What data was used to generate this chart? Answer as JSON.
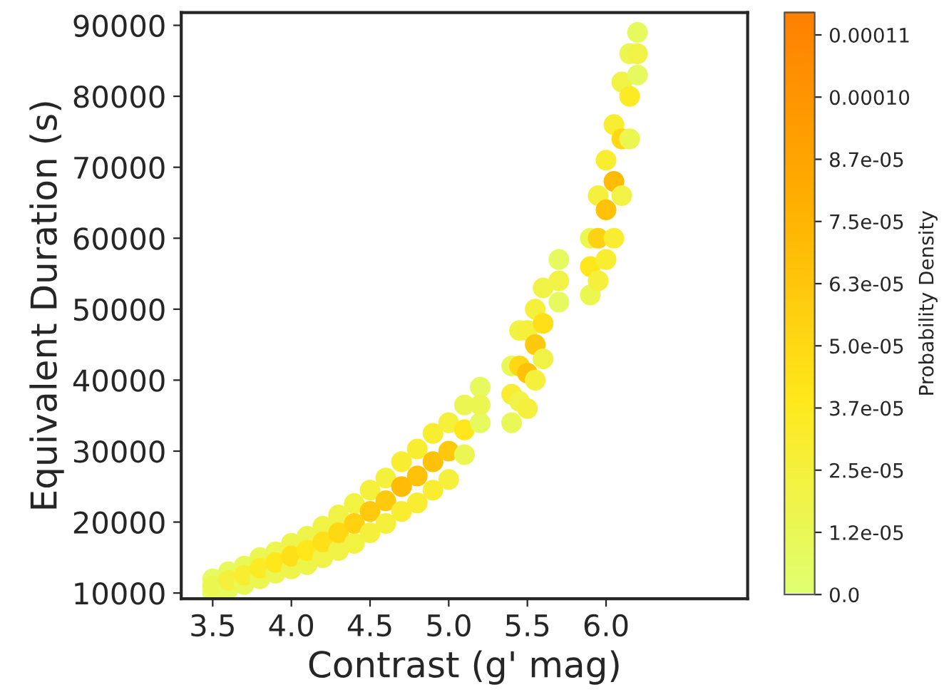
{
  "chart_data": {
    "type": "scatter",
    "xlabel": "Contrast (g' mag)",
    "ylabel": "Equivalent Duration (s)",
    "clabel": "Probability Density",
    "xlim": [
      3.3,
      6.9
    ],
    "xticks": [
      3.5,
      {
        "value": 4,
        "label": "4.0"
      },
      4.5,
      {
        "value": 5,
        "label": "5.0"
      },
      5.5,
      {
        "value": 6,
        "label": "6.0"
      }
    ],
    "ylim": [
      9200,
      91800
    ],
    "yticks": [
      10000,
      20000,
      30000,
      40000,
      50000,
      60000,
      70000,
      80000,
      90000
    ],
    "clim": [
      0,
      0.000117
    ],
    "cticks": [
      {
        "value": 0,
        "label": "0.0"
      },
      {
        "value": 1.25e-05,
        "label": "1.2e-05"
      },
      {
        "value": 2.5e-05,
        "label": "2.5e-05"
      },
      {
        "value": 3.75e-05,
        "label": "3.7e-05"
      },
      {
        "value": 5e-05,
        "label": "5.0e-05"
      },
      {
        "value": 6.25e-05,
        "label": "6.3e-05"
      },
      {
        "value": 7.5e-05,
        "label": "7.5e-05"
      },
      {
        "value": 8.75e-05,
        "label": "8.7e-05"
      },
      {
        "value": 0.0001,
        "label": "0.00010"
      },
      {
        "value": 0.0001125,
        "label": "0.00011"
      }
    ],
    "marker": "circle",
    "grid": false,
    "x": [
      3.5,
      3.5,
      3.5,
      3.6,
      3.6,
      3.6,
      3.7,
      3.7,
      3.7,
      3.8,
      3.8,
      3.8,
      3.9,
      3.9,
      3.9,
      4.0,
      4.0,
      4.0,
      4.1,
      4.1,
      4.1,
      4.2,
      4.2,
      4.2,
      4.3,
      4.3,
      4.3,
      4.4,
      4.4,
      4.4,
      4.5,
      4.5,
      4.5,
      4.6,
      4.6,
      4.6,
      4.7,
      4.7,
      4.7,
      4.8,
      4.8,
      4.8,
      4.9,
      4.9,
      4.9,
      5.0,
      5.0,
      5.0,
      5.1,
      5.1,
      5.1,
      5.2,
      5.2,
      5.2,
      5.4,
      5.4,
      5.4,
      5.45,
      5.45,
      5.45,
      5.5,
      5.5,
      5.5,
      5.55,
      5.55,
      5.55,
      5.6,
      5.6,
      5.6,
      5.7,
      5.7,
      5.7,
      5.9,
      5.9,
      5.9,
      5.95,
      5.95,
      5.95,
      6.0,
      6.0,
      6.0,
      6.05,
      6.05,
      6.05,
      6.1,
      6.1,
      6.1,
      6.15,
      6.15,
      6.15,
      6.2,
      6.2,
      6.2
    ],
    "values": [
      10000,
      12000,
      11000,
      10600,
      13000,
      11800,
      11200,
      13800,
      12500,
      12000,
      15000,
      13500,
      12800,
      15800,
      14300,
      13400,
      17000,
      15200,
      14000,
      18000,
      16000,
      15000,
      19400,
      17200,
      16000,
      21000,
      18500,
      17000,
      22600,
      19800,
      18500,
      24500,
      21500,
      19800,
      26200,
      23000,
      21500,
      28500,
      25000,
      22700,
      30300,
      26500,
      24500,
      32500,
      28500,
      26000,
      34000,
      30000,
      29500,
      36500,
      33000,
      34000,
      39000,
      36500,
      34000,
      42000,
      38000,
      37000,
      47000,
      42000,
      36000,
      47000,
      41000,
      40000,
      50000,
      45000,
      43000,
      53000,
      48000,
      51000,
      57000,
      54000,
      52000,
      60000,
      56000,
      54000,
      66000,
      60000,
      57000,
      71000,
      64000,
      60000,
      76000,
      68000,
      66000,
      82000,
      74000,
      74000,
      86000,
      80000,
      83000,
      89000,
      86000
    ],
    "cvalues": [
      6e-06,
      6e-06,
      1.5e-05,
      1e-05,
      1e-05,
      2.5e-05,
      1.2e-05,
      1.2e-05,
      3e-05,
      1.5e-05,
      1.5e-05,
      3.5e-05,
      1.5e-05,
      1.5e-05,
      4e-05,
      1.8e-05,
      1.8e-05,
      4.5e-05,
      1.8e-05,
      1.8e-05,
      4e-05,
      2e-05,
      2e-05,
      4.5e-05,
      2e-05,
      2e-05,
      5e-05,
      2.2e-05,
      2.2e-05,
      5.5e-05,
      2.5e-05,
      2.5e-05,
      6e-05,
      2.5e-05,
      2.5e-05,
      6e-05,
      3e-05,
      3e-05,
      7e-05,
      3e-05,
      3e-05,
      6.5e-05,
      3e-05,
      3e-05,
      6.5e-05,
      2.5e-05,
      2.5e-05,
      6e-05,
      1.5e-05,
      1.5e-05,
      4e-05,
      8e-06,
      8e-06,
      1.5e-05,
      1.2e-05,
      1.2e-05,
      3e-05,
      2e-05,
      2e-05,
      5e-05,
      2.5e-05,
      2.5e-05,
      6.5e-05,
      2.5e-05,
      2.5e-05,
      6e-05,
      2e-05,
      2e-05,
      4.5e-05,
      8e-06,
      8e-06,
      2e-05,
      1.5e-05,
      1.5e-05,
      4e-05,
      2.5e-05,
      2.5e-05,
      5.5e-05,
      3e-05,
      3e-05,
      6.5e-05,
      3e-05,
      3e-05,
      7e-05,
      2e-05,
      2e-05,
      5e-05,
      1.5e-05,
      1.5e-05,
      3.5e-05,
      8e-06,
      8e-06,
      2e-05
    ]
  }
}
